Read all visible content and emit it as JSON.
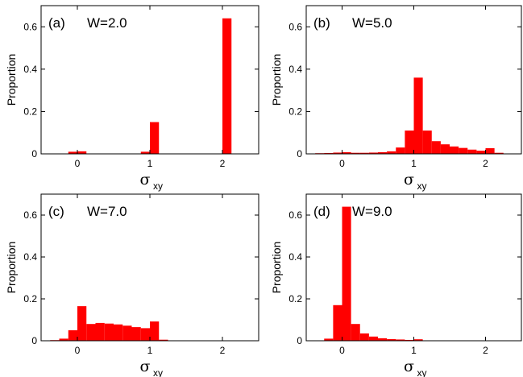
{
  "chart_data": [
    {
      "type": "bar",
      "panel_label": "(a)",
      "annotation": "W=2.0",
      "xlabel": "σ",
      "xlabel_sub": "xy",
      "ylabel": "Proportion",
      "xlim": [
        -0.5,
        2.5
      ],
      "ylim": [
        0,
        0.7
      ],
      "xticks": [
        0,
        1,
        2
      ],
      "yticks": [
        0,
        0.2,
        0.4,
        0.6
      ],
      "ytick_labels": [
        "0",
        "0.2",
        "0.4",
        "0.6"
      ],
      "bin_width": 0.125,
      "color": "#ff0000",
      "bins": [
        {
          "x": -0.0625,
          "y": 0.01
        },
        {
          "x": 0.0625,
          "y": 0.012
        },
        {
          "x": 0.9375,
          "y": 0.01
        },
        {
          "x": 1.0625,
          "y": 0.15
        },
        {
          "x": 2.0625,
          "y": 0.64
        }
      ]
    },
    {
      "type": "bar",
      "panel_label": "(b)",
      "annotation": "W=5.0",
      "xlabel": "σ",
      "xlabel_sub": "xy",
      "ylabel": "Proportion",
      "xlim": [
        -0.5,
        2.5
      ],
      "ylim": [
        0,
        0.7
      ],
      "xticks": [
        0,
        1,
        2
      ],
      "yticks": [
        0,
        0.2,
        0.4,
        0.6
      ],
      "ytick_labels": [
        "0",
        "0.2",
        "0.4",
        "0.6"
      ],
      "bin_width": 0.125,
      "color": "#ff0000",
      "bins": [
        {
          "x": -0.3125,
          "y": 0.003
        },
        {
          "x": -0.1875,
          "y": 0.004
        },
        {
          "x": -0.0625,
          "y": 0.006
        },
        {
          "x": 0.0625,
          "y": 0.008
        },
        {
          "x": 0.1875,
          "y": 0.005
        },
        {
          "x": 0.3125,
          "y": 0.005
        },
        {
          "x": 0.4375,
          "y": 0.006
        },
        {
          "x": 0.5625,
          "y": 0.008
        },
        {
          "x": 0.6875,
          "y": 0.012
        },
        {
          "x": 0.8125,
          "y": 0.03
        },
        {
          "x": 0.9375,
          "y": 0.11
        },
        {
          "x": 1.0625,
          "y": 0.36
        },
        {
          "x": 1.1875,
          "y": 0.11
        },
        {
          "x": 1.3125,
          "y": 0.06
        },
        {
          "x": 1.4375,
          "y": 0.045
        },
        {
          "x": 1.5625,
          "y": 0.035
        },
        {
          "x": 1.6875,
          "y": 0.028
        },
        {
          "x": 1.8125,
          "y": 0.02
        },
        {
          "x": 1.9375,
          "y": 0.015
        },
        {
          "x": 2.0625,
          "y": 0.027
        },
        {
          "x": 2.1875,
          "y": 0.005
        }
      ]
    },
    {
      "type": "bar",
      "panel_label": "(c)",
      "annotation": "W=7.0",
      "xlabel": "σ",
      "xlabel_sub": "xy",
      "ylabel": "Proportion",
      "xlim": [
        -0.5,
        2.5
      ],
      "ylim": [
        0,
        0.7
      ],
      "xticks": [
        0,
        1,
        2
      ],
      "yticks": [
        0,
        0.2,
        0.4,
        0.6
      ],
      "ytick_labels": [
        "0",
        "0.2",
        "0.4",
        "0.6"
      ],
      "bin_width": 0.125,
      "color": "#ff0000",
      "bins": [
        {
          "x": -0.3125,
          "y": 0.003
        },
        {
          "x": -0.1875,
          "y": 0.01
        },
        {
          "x": -0.0625,
          "y": 0.05
        },
        {
          "x": 0.0625,
          "y": 0.165
        },
        {
          "x": 0.1875,
          "y": 0.08
        },
        {
          "x": 0.3125,
          "y": 0.085
        },
        {
          "x": 0.4375,
          "y": 0.082
        },
        {
          "x": 0.5625,
          "y": 0.078
        },
        {
          "x": 0.6875,
          "y": 0.072
        },
        {
          "x": 0.8125,
          "y": 0.065
        },
        {
          "x": 0.9375,
          "y": 0.06
        },
        {
          "x": 1.0625,
          "y": 0.092
        },
        {
          "x": 1.1875,
          "y": 0.005
        }
      ]
    },
    {
      "type": "bar",
      "panel_label": "(d)",
      "annotation": "W=9.0",
      "xlabel": "σ",
      "xlabel_sub": "xy",
      "ylabel": "Proportion",
      "xlim": [
        -0.5,
        2.5
      ],
      "ylim": [
        0,
        0.7
      ],
      "xticks": [
        0,
        1,
        2
      ],
      "yticks": [
        0,
        0.2,
        0.4,
        0.6
      ],
      "ytick_labels": [
        "0",
        "0.2",
        "0.4",
        "0.6"
      ],
      "bin_width": 0.125,
      "color": "#ff0000",
      "bins": [
        {
          "x": -0.1875,
          "y": 0.01
        },
        {
          "x": -0.0625,
          "y": 0.17
        },
        {
          "x": 0.0625,
          "y": 0.64
        },
        {
          "x": 0.1875,
          "y": 0.08
        },
        {
          "x": 0.3125,
          "y": 0.035
        },
        {
          "x": 0.4375,
          "y": 0.02
        },
        {
          "x": 0.5625,
          "y": 0.012
        },
        {
          "x": 0.6875,
          "y": 0.008
        },
        {
          "x": 0.8125,
          "y": 0.006
        },
        {
          "x": 0.9375,
          "y": 0.004
        },
        {
          "x": 1.0625,
          "y": 0.007
        }
      ]
    }
  ]
}
